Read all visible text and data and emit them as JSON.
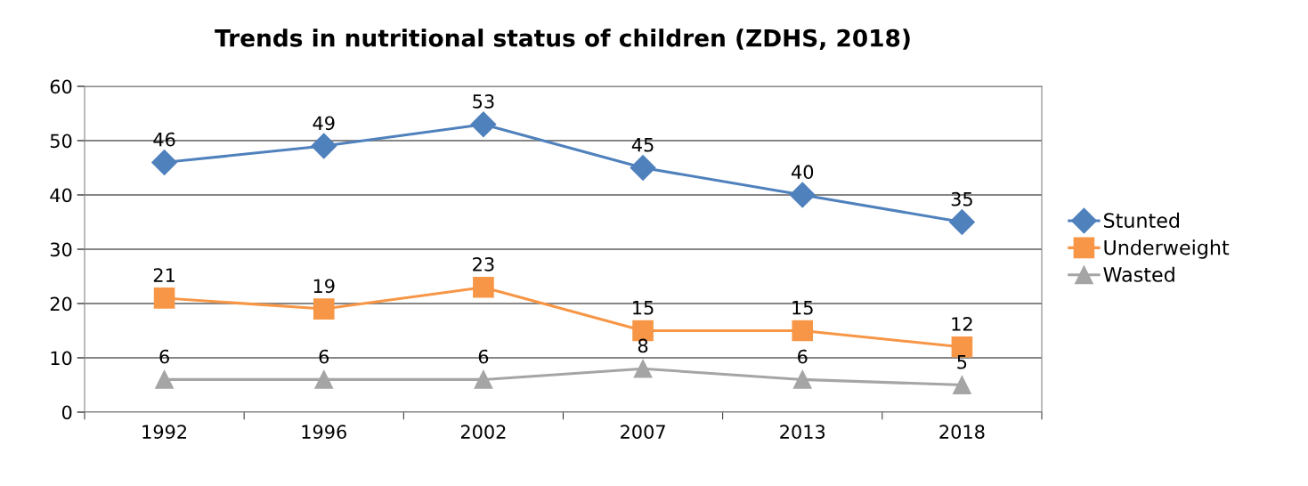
{
  "chart_data": {
    "type": "line",
    "title": "Trends in nutritional status of children (ZDHS, 2018)",
    "categories": [
      "1992",
      "1996",
      "2002",
      "2007",
      "2013",
      "2018"
    ],
    "series": [
      {
        "name": "Stunted",
        "color": "#4f81bd",
        "marker": "diamond",
        "values": [
          46,
          49,
          53,
          45,
          40,
          35
        ]
      },
      {
        "name": "Underweight",
        "color": "#f79646",
        "marker": "square",
        "values": [
          21,
          19,
          23,
          15,
          15,
          12
        ]
      },
      {
        "name": "Wasted",
        "color": "#a5a5a5",
        "marker": "triangle",
        "values": [
          6,
          6,
          6,
          8,
          6,
          5
        ]
      }
    ],
    "ylim": [
      0,
      60
    ],
    "yticks": [
      0,
      10,
      20,
      30,
      40,
      50,
      60
    ],
    "grid": "y",
    "legend": "right",
    "data_labels": true
  }
}
